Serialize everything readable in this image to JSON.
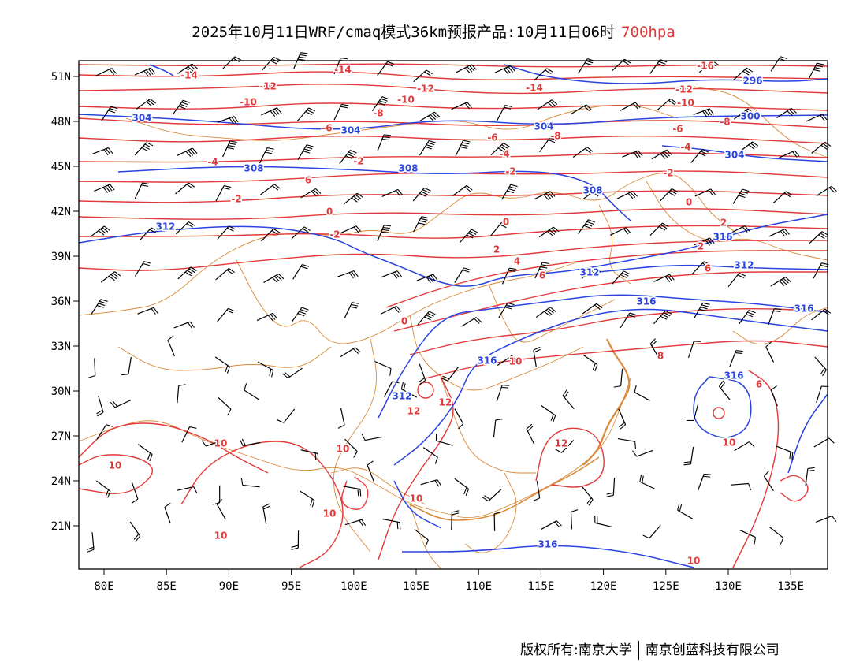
{
  "title": {
    "main": "2025年10月11日WRF/cmaq模式36km预报产品:10月11日06时",
    "level": "700hpa"
  },
  "axes": {
    "lon_ticks": [
      "80E",
      "85E",
      "90E",
      "95E",
      "100E",
      "105E",
      "110E",
      "115E",
      "120E",
      "125E",
      "130E",
      "135E"
    ],
    "lat_ticks": [
      "51N",
      "48N",
      "45N",
      "42N",
      "39N",
      "36N",
      "33N",
      "30N",
      "27N",
      "24N",
      "21N"
    ]
  },
  "temperature_labels": [
    "-16",
    "-14",
    "-14",
    "-14",
    "-12",
    "-12",
    "-12",
    "-10",
    "-10",
    "-10",
    "-8",
    "-8",
    "-8",
    "-6",
    "-6",
    "-6",
    "-4",
    "-4",
    "-4",
    "-2",
    "-2",
    "-2",
    "-2",
    "-2",
    "0",
    "0",
    "0",
    "2",
    "2",
    "2",
    "4",
    "6",
    "6",
    "8",
    "10",
    "10",
    "10",
    "10",
    "10",
    "10",
    "10",
    "10",
    "10",
    "12",
    "12",
    "12",
    "0",
    "6",
    "6"
  ],
  "height_labels": [
    "296",
    "300",
    "304",
    "304",
    "304",
    "304",
    "308",
    "308",
    "308",
    "312",
    "312",
    "312",
    "312",
    "316",
    "316",
    "316",
    "316",
    "316",
    "316"
  ],
  "colors": {
    "temperature": "#e23a3a",
    "height": "#2a44e0",
    "boundary": "#d98a3a",
    "wind": "#000000"
  },
  "footer": {
    "left": "版权所有:南京大学",
    "right": "南京创蓝科技有限公司"
  }
}
